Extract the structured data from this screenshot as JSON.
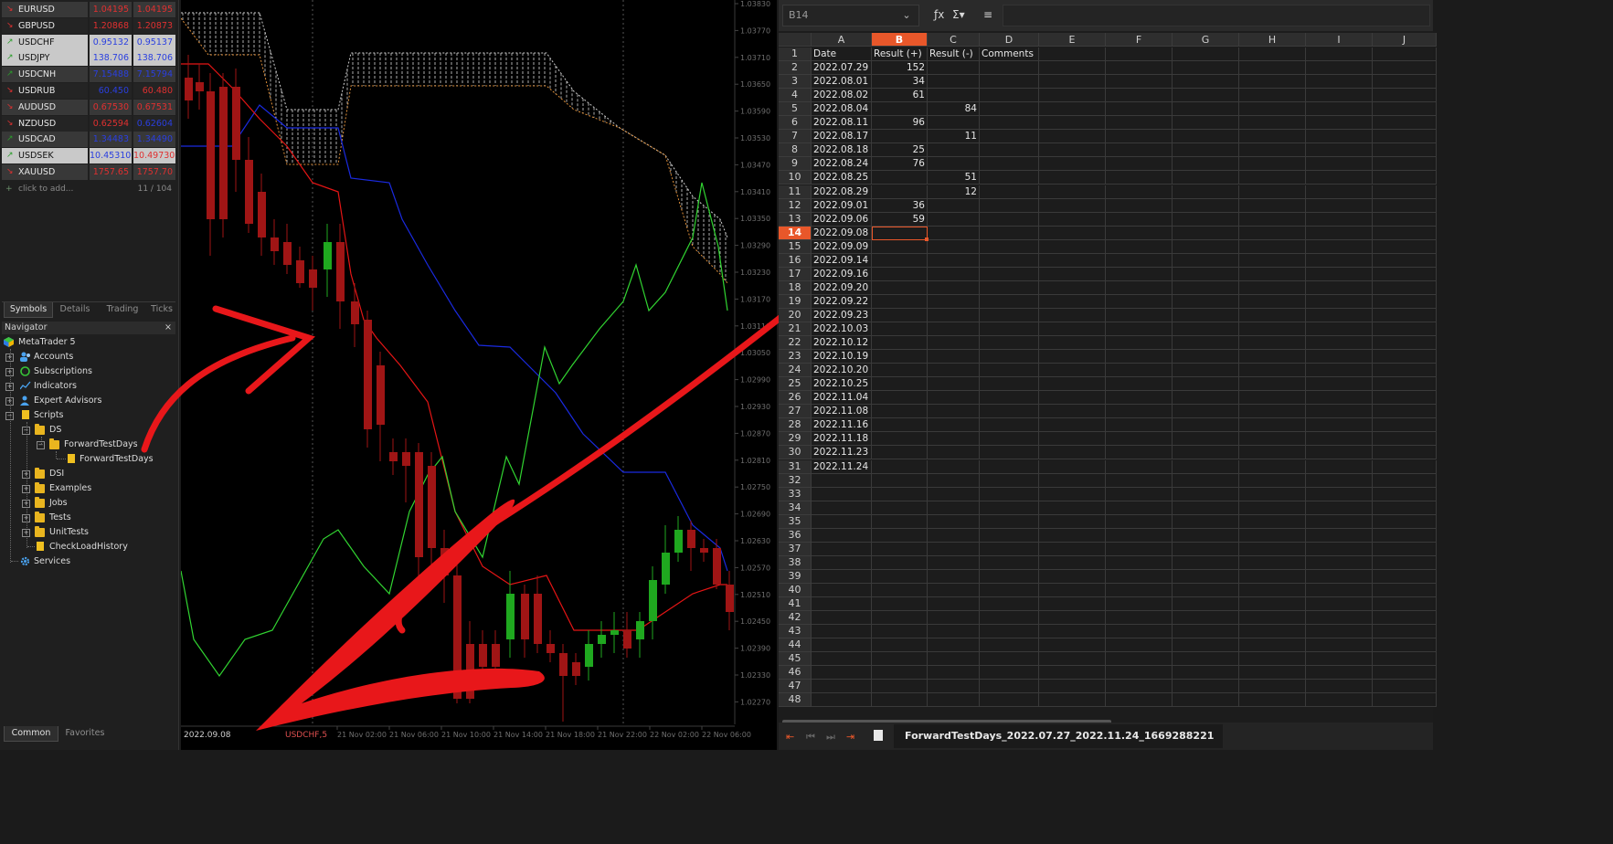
{
  "market_watch": {
    "rows": [
      {
        "symbol": "EURUSD",
        "bid": "1.04195",
        "ask": "1.04195",
        "dir": "down"
      },
      {
        "symbol": "GBPUSD",
        "bid": "1.20868",
        "ask": "1.20873",
        "dir": "down"
      },
      {
        "symbol": "USDCHF",
        "bid": "0.95132",
        "ask": "0.95137",
        "dir": "up"
      },
      {
        "symbol": "USDJPY",
        "bid": "138.706",
        "ask": "138.706",
        "dir": "up"
      },
      {
        "symbol": "USDCNH",
        "bid": "7.15488",
        "ask": "7.15794",
        "dir": "up"
      },
      {
        "symbol": "USDRUB",
        "bid": "60.450",
        "ask": "60.480",
        "dir": "down"
      },
      {
        "symbol": "AUDUSD",
        "bid": "0.67530",
        "ask": "0.67531",
        "dir": "down"
      },
      {
        "symbol": "NZDUSD",
        "bid": "0.62594",
        "ask": "0.62604",
        "dir": "down"
      },
      {
        "symbol": "USDCAD",
        "bid": "1.34483",
        "ask": "1.34490",
        "dir": "up"
      },
      {
        "symbol": "USDSEK",
        "bid": "10.45310",
        "ask": "10.49730",
        "dir": "up"
      },
      {
        "symbol": "XAUUSD",
        "bid": "1757.65",
        "ask": "1757.70",
        "dir": "down"
      }
    ],
    "add_label": "click to add...",
    "count": "11 / 104",
    "tabs": [
      "Symbols",
      "Details",
      "Trading",
      "Ticks"
    ],
    "colors": {
      "up": "#2a9d2a",
      "down": "#e03030",
      "bid_up": "#2a3fe0",
      "bid_down": "#e03030"
    }
  },
  "navigator": {
    "title": "Navigator",
    "close": "×",
    "items": [
      "MetaTrader 5",
      "Accounts",
      "Subscriptions",
      "Indicators",
      "Expert Advisors",
      "Scripts",
      "DS",
      "ForwardTestDays",
      "ForwardTestDays",
      "DSI",
      "Examples",
      "Jobs",
      "Tests",
      "UnitTests",
      "CheckLoadHistory",
      "Services"
    ],
    "tabs": [
      "Common",
      "Favorites"
    ]
  },
  "chart": {
    "symbol_label": "USDCHF,5",
    "date_label": "2022.09.08",
    "price_ticks": [
      "1.03830",
      "1.03770",
      "1.03710",
      "1.03650",
      "1.03590",
      "1.03530",
      "1.03470",
      "1.03410",
      "1.03350",
      "1.03290",
      "1.03230",
      "1.03170",
      "1.03110",
      "1.03050",
      "1.02990",
      "1.02930",
      "1.02870",
      "1.02810",
      "1.02750",
      "1.02690",
      "1.02630",
      "1.02570",
      "1.02510",
      "1.02450",
      "1.02390",
      "1.02330",
      "1.02270"
    ],
    "time_ticks": [
      "21 Nov 02:00",
      "21 Nov 06:00",
      "21 Nov 10:00",
      "21 Nov 14:00",
      "21 Nov 18:00",
      "21 Nov 22:00",
      "22 Nov 02:00",
      "22 Nov 06:00"
    ],
    "colors": {
      "bull": "#1fa81f",
      "bear": "#a01515",
      "tenkan": "#e51515",
      "kijun": "#1a2ae0",
      "chikou": "#31d431",
      "arrow": "#e8171a"
    }
  },
  "spreadsheet": {
    "name_box": "B14",
    "columns": [
      "A",
      "B",
      "C",
      "D",
      "E",
      "F",
      "G",
      "H",
      "I",
      "J"
    ],
    "active_column": "B",
    "active_row": "14",
    "header_row": [
      "Date",
      "Result (+)",
      "Result (-)",
      "Comments"
    ],
    "rows": [
      [
        "2022.07.29",
        "152",
        ""
      ],
      [
        "2022.08.01",
        "34",
        ""
      ],
      [
        "2022.08.02",
        "61",
        ""
      ],
      [
        "2022.08.04",
        "",
        "84"
      ],
      [
        "2022.08.11",
        "96",
        ""
      ],
      [
        "2022.08.17",
        "",
        "11"
      ],
      [
        "2022.08.18",
        "25",
        ""
      ],
      [
        "2022.08.24",
        "76",
        ""
      ],
      [
        "2022.08.25",
        "",
        "51"
      ],
      [
        "2022.08.29",
        "",
        "12"
      ],
      [
        "2022.09.01",
        "36",
        ""
      ],
      [
        "2022.09.06",
        "59",
        ""
      ],
      [
        "2022.09.08",
        "",
        ""
      ],
      [
        "2022.09.09",
        "",
        ""
      ],
      [
        "2022.09.14",
        "",
        ""
      ],
      [
        "2022.09.16",
        "",
        ""
      ],
      [
        "2022.09.20",
        "",
        ""
      ],
      [
        "2022.09.22",
        "",
        ""
      ],
      [
        "2022.09.23",
        "",
        ""
      ],
      [
        "2022.10.03",
        "",
        ""
      ],
      [
        "2022.10.12",
        "",
        ""
      ],
      [
        "2022.10.19",
        "",
        ""
      ],
      [
        "2022.10.20",
        "",
        ""
      ],
      [
        "2022.10.25",
        "",
        ""
      ],
      [
        "2022.11.04",
        "",
        ""
      ],
      [
        "2022.11.08",
        "",
        ""
      ],
      [
        "2022.11.16",
        "",
        ""
      ],
      [
        "2022.11.18",
        "",
        ""
      ],
      [
        "2022.11.23",
        "",
        ""
      ],
      [
        "2022.11.24",
        "",
        ""
      ]
    ],
    "row_numbers": [
      "1",
      "2",
      "3",
      "4",
      "5",
      "6",
      "7",
      "8",
      "9",
      "10",
      "11",
      "12",
      "13",
      "14",
      "15",
      "16",
      "17",
      "18",
      "19",
      "20",
      "21",
      "22",
      "23",
      "24",
      "25",
      "26",
      "27",
      "28",
      "29",
      "30",
      "31",
      "32",
      "33",
      "34",
      "35",
      "36",
      "37",
      "38",
      "39",
      "40",
      "41",
      "42",
      "43",
      "44",
      "45",
      "46",
      "47",
      "48"
    ],
    "sheet_tab": "ForwardTestDays_2022.07.27_2022.11.24_1669288221",
    "accent": "#e8572a"
  }
}
